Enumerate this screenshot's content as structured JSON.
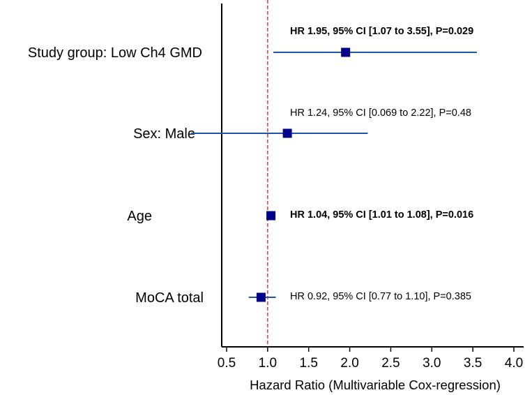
{
  "chart_data": {
    "type": "forest",
    "xlabel": "Hazard Ratio (Multivariable Cox-regression)",
    "xlim": [
      0.5,
      4.0
    ],
    "xticks": [
      0.5,
      1.0,
      1.5,
      2.0,
      2.5,
      3.0,
      3.5,
      4.0
    ],
    "xtick_labels": [
      "0.5",
      "1.0",
      "1.5",
      "2.0",
      "2.5",
      "3.0",
      "3.5",
      "4.0"
    ],
    "reference_line": 1.0,
    "colors": {
      "marker": "#00008B",
      "ci_line": "#1F55A8",
      "reference": "#E03030",
      "axis": "#000000"
    },
    "rows": [
      {
        "label": "Study group: Low Ch4 GMD",
        "hr": 1.95,
        "ci_low": 1.07,
        "ci_high": 3.55,
        "p": 0.029,
        "annotation": "HR 1.95, 95% CI [1.07 to 3.55], P=0.029",
        "bold": true
      },
      {
        "label": "Sex: Male",
        "hr": 1.24,
        "ci_low": 0.069,
        "ci_high": 2.22,
        "p": 0.48,
        "annotation": "HR 1.24, 95% CI [0.069 to 2.22], P=0.48",
        "bold": false
      },
      {
        "label": "Age",
        "hr": 1.04,
        "ci_low": 1.01,
        "ci_high": 1.08,
        "p": 0.016,
        "annotation": "HR 1.04, 95% CI [1.01 to 1.08], P=0.016",
        "bold": true
      },
      {
        "label": "MoCA total",
        "hr": 0.92,
        "ci_low": 0.77,
        "ci_high": 1.1,
        "p": 0.385,
        "annotation": "HR 0.92, 95% CI [0.77 to 1.10], P=0.385",
        "bold": false
      }
    ]
  }
}
